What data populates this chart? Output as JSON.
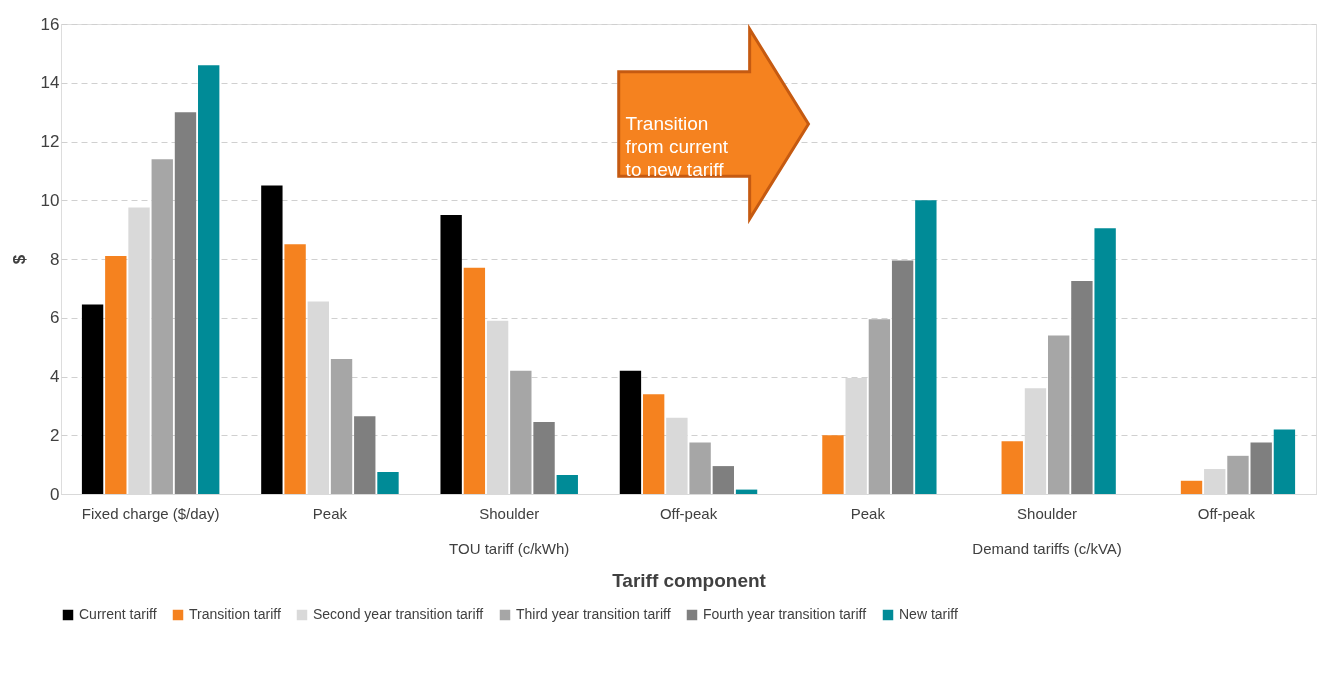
{
  "chart_data": {
    "type": "bar",
    "categories": [
      "Fixed charge ($/day)",
      "Peak",
      "Shoulder",
      "Off-peak",
      "Peak",
      "Shoulder",
      "Off-peak"
    ],
    "series": [
      {
        "name": "Current tariff",
        "color": "#000000",
        "values": [
          6.45,
          10.5,
          9.5,
          4.2,
          null,
          null,
          null
        ]
      },
      {
        "name": "Transition tariff",
        "color": "#f5821f",
        "values": [
          8.1,
          8.5,
          7.7,
          3.4,
          2.0,
          1.8,
          0.45
        ]
      },
      {
        "name": "Second year transition tariff",
        "color": "#d9d9d9",
        "values": [
          9.75,
          6.55,
          5.9,
          2.6,
          3.95,
          3.6,
          0.85
        ]
      },
      {
        "name": "Third year transition tariff",
        "color": "#a6a6a6",
        "values": [
          11.4,
          4.6,
          4.2,
          1.75,
          5.95,
          5.4,
          1.3
        ]
      },
      {
        "name": "Fourth year transition tariff",
        "color": "#7f7f7f",
        "values": [
          13.0,
          2.65,
          2.45,
          0.95,
          7.95,
          7.25,
          1.75
        ]
      },
      {
        "name": "New tariff",
        "color": "#008b97",
        "values": [
          14.6,
          0.75,
          0.65,
          0.15,
          10.0,
          9.05,
          2.2
        ]
      }
    ],
    "xlabel": "Tariff component",
    "ylabel": "$",
    "ylim": [
      0,
      16
    ],
    "yticks": [
      0,
      2,
      4,
      6,
      8,
      10,
      12,
      14,
      16
    ],
    "grid": "y",
    "legend": "bottom",
    "annotations": [
      "Transition\nfrom current\nto new tariff",
      "TOU tariff (c/kWh)",
      "Demand tariffs (c/kVA)"
    ]
  }
}
